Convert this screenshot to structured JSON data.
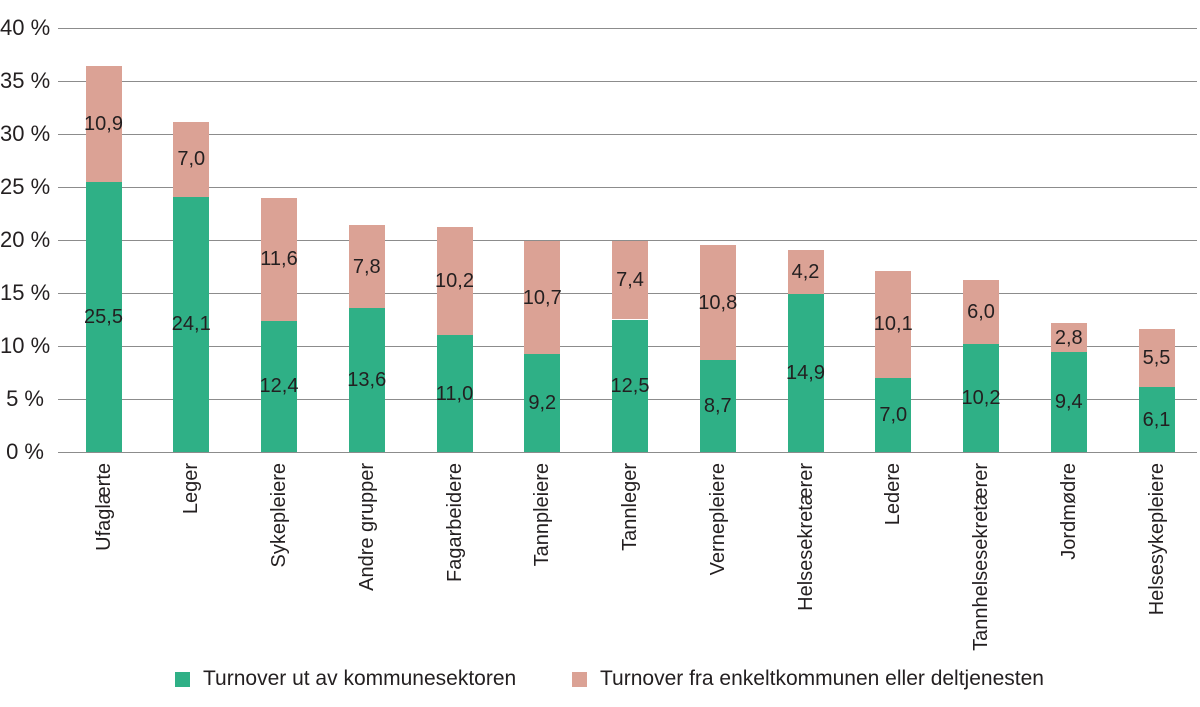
{
  "chart_data": {
    "type": "bar",
    "stacked": true,
    "title": "",
    "xlabel": "",
    "ylabel": "",
    "ylim": [
      0,
      40
    ],
    "y_tick_step": 5,
    "y_ticks": [
      "0 %",
      "5 %",
      "10 %",
      "15 %",
      "20 %",
      "25 %",
      "30 %",
      "35 %",
      "40 %"
    ],
    "grid": true,
    "decimal_separator": ",",
    "legend_position": "bottom",
    "categories": [
      "Ufaglærte",
      "Leger",
      "Sykepleiere",
      "Andre grupper",
      "Fagarbeidere",
      "Tannpleiere",
      "Tannleger",
      "Vernepleiere",
      "Helsesekretærer",
      "Ledere",
      "Tannhelsesekretærer",
      "Jordmødre",
      "Helsesykepleiere"
    ],
    "series": [
      {
        "name": "Turnover ut av kommunesektoren",
        "color": "#2fb086",
        "values": [
          25.5,
          24.1,
          12.4,
          13.6,
          11.0,
          9.2,
          12.5,
          8.7,
          14.9,
          7.0,
          10.2,
          9.4,
          6.1
        ]
      },
      {
        "name": "Turnover fra enkeltkommunen eller deltjenesten",
        "color": "#dba295",
        "values": [
          10.9,
          7.0,
          11.6,
          7.8,
          10.2,
          10.7,
          7.4,
          10.8,
          4.2,
          10.1,
          6.0,
          2.8,
          5.5
        ]
      }
    ]
  },
  "legend": {
    "items": [
      {
        "label": "Turnover ut av kommunesektoren",
        "color": "#2fb086"
      },
      {
        "label": "Turnover fra enkeltkommunen eller deltjenesten",
        "color": "#dba295"
      }
    ]
  }
}
